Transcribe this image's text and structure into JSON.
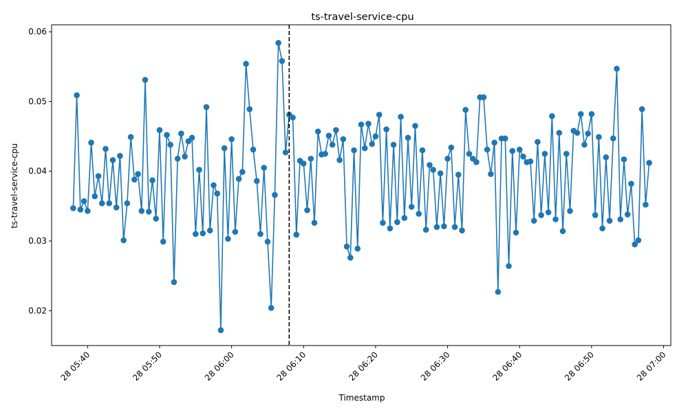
{
  "chart_data": {
    "type": "line",
    "title": "ts-travel-service-cpu",
    "xlabel": "Timestamp",
    "ylabel": "ts-travel-service-cpu",
    "x_date": "2024-01-28",
    "x_start": "05:38",
    "x_interval_seconds": 30,
    "ylim": [
      0.015,
      0.061
    ],
    "yticks": [
      "0.02",
      "0.03",
      "0.04",
      "0.05",
      "0.06"
    ],
    "ytick_values": [
      0.02,
      0.03,
      0.04,
      0.05,
      0.06
    ],
    "xticks": [
      "28 05:40",
      "28 05:50",
      "28 06:00",
      "28 06:10",
      "28 06:20",
      "28 06:30",
      "28 06:40",
      "28 06:50",
      "28 07:00"
    ],
    "xtick_values": [
      "05:40",
      "05:50",
      "06:00",
      "06:10",
      "06:20",
      "06:30",
      "06:40",
      "06:50",
      "07:00"
    ],
    "xlim": [
      "05:35",
      "07:01"
    ],
    "vline_x": "06:08",
    "series": [
      {
        "name": "",
        "color": "#1f77b4",
        "values": [
          0.0347,
          0.0509,
          0.0345,
          0.0357,
          0.0343,
          0.0441,
          0.0364,
          0.0393,
          0.0354,
          0.0432,
          0.0354,
          0.0416,
          0.0348,
          0.0422,
          0.0301,
          0.0354,
          0.0449,
          0.0388,
          0.0396,
          0.0343,
          0.0531,
          0.0342,
          0.0387,
          0.0332,
          0.0459,
          0.0299,
          0.0452,
          0.0438,
          0.0241,
          0.0418,
          0.0454,
          0.0421,
          0.0443,
          0.0448,
          0.031,
          0.0402,
          0.0311,
          0.0492,
          0.0315,
          0.038,
          0.0368,
          0.0172,
          0.0433,
          0.0303,
          0.0446,
          0.0313,
          0.0389,
          0.0399,
          0.0554,
          0.0489,
          0.0431,
          0.0386,
          0.031,
          0.0405,
          0.0299,
          0.0204,
          0.0366,
          0.0584,
          0.0558,
          0.0427,
          0.0481,
          0.0477,
          0.0309,
          0.0415,
          0.0411,
          0.0344,
          0.0418,
          0.0326,
          0.0457,
          0.0424,
          0.0425,
          0.0451,
          0.0438,
          0.0459,
          0.0416,
          0.0446,
          0.0292,
          0.0276,
          0.043,
          0.0289,
          0.0467,
          0.0433,
          0.0468,
          0.0439,
          0.045,
          0.0481,
          0.0326,
          0.046,
          0.0318,
          0.0438,
          0.0327,
          0.0478,
          0.0333,
          0.0448,
          0.0349,
          0.0465,
          0.0339,
          0.043,
          0.0316,
          0.0409,
          0.0402,
          0.032,
          0.0397,
          0.0321,
          0.0418,
          0.0434,
          0.032,
          0.0395,
          0.0315,
          0.0488,
          0.0425,
          0.0418,
          0.0413,
          0.0506,
          0.0506,
          0.0431,
          0.0396,
          0.0441,
          0.0227,
          0.0447,
          0.0447,
          0.0264,
          0.0429,
          0.0312,
          0.0431,
          0.0421,
          0.0413,
          0.0414,
          0.0329,
          0.0442,
          0.0337,
          0.0425,
          0.0341,
          0.0479,
          0.0331,
          0.0455,
          0.0314,
          0.0425,
          0.0343,
          0.0458,
          0.0455,
          0.0482,
          0.0438,
          0.0454,
          0.0482,
          0.0337,
          0.0449,
          0.0318,
          0.042,
          0.0329,
          0.0447,
          0.0547,
          0.0331,
          0.0417,
          0.0338,
          0.0382,
          0.0295,
          0.0301,
          0.0489,
          0.0352,
          0.0412
        ]
      }
    ],
    "grid": false,
    "legend": false
  }
}
